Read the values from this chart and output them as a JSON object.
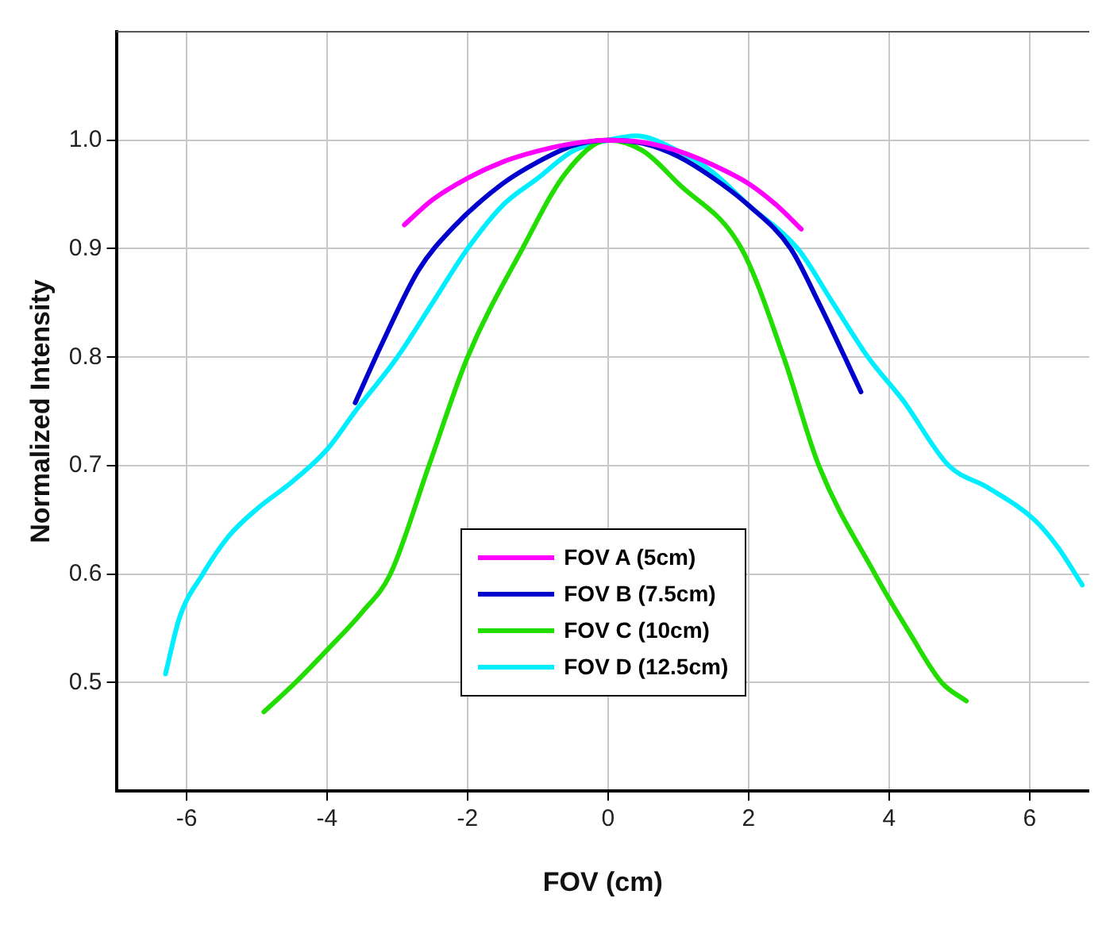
{
  "chart_data": {
    "type": "line",
    "xlabel": "FOV (cm)",
    "ylabel": "Normalized Intensity",
    "xlim": [
      -7,
      6.85
    ],
    "xticks": [
      -6,
      -4,
      -2,
      0,
      2,
      4,
      6
    ],
    "ylim": [
      0.4,
      1.1
    ],
    "yticks": [
      0.5,
      0.6,
      0.7,
      0.8,
      0.9,
      {
        "value": 1,
        "label": "1.0"
      }
    ],
    "grid": true,
    "legend": "bottom",
    "marker": "none",
    "line_style": "solid",
    "series": [
      {
        "name": "FOV A (5cm)",
        "color": "#ff00ff",
        "x": [
          -2.9,
          -2.5,
          -2,
          -1.5,
          -1,
          -0.5,
          0,
          0.5,
          1,
          1.5,
          2,
          2.4,
          2.75
        ],
        "values": [
          0.922,
          0.945,
          0.965,
          0.98,
          0.99,
          0.997,
          1.0,
          0.998,
          0.99,
          0.977,
          0.96,
          0.94,
          0.918
        ]
      },
      {
        "name": "FOV B (7.5cm)",
        "color": "#0000cc",
        "x": [
          -3.6,
          -3.2,
          -2.7,
          -2.2,
          -1.5,
          -1,
          -0.5,
          0,
          0.5,
          1,
          1.5,
          2,
          2.6,
          3,
          3.37,
          3.6
        ],
        "values": [
          0.758,
          0.815,
          0.88,
          0.92,
          0.96,
          0.98,
          0.995,
          1.0,
          0.997,
          0.985,
          0.965,
          0.94,
          0.9,
          0.85,
          0.8,
          0.768
        ]
      },
      {
        "name": "FOV C (10cm)",
        "color": "#22dd00",
        "x": [
          -4.9,
          -4.45,
          -4,
          -3.5,
          -3.1,
          -2.55,
          -2,
          -1.22,
          -0.6,
          0,
          0.5,
          1,
          1.9,
          2.5,
          3.0,
          3.8,
          4.3,
          4.75,
          5.1
        ],
        "values": [
          0.473,
          0.5,
          0.53,
          0.565,
          0.6,
          0.7,
          0.8,
          0.9,
          0.97,
          1.0,
          0.99,
          0.96,
          0.9,
          0.8,
          0.7,
          0.6,
          0.545,
          0.5,
          0.483
        ]
      },
      {
        "name": "FOV D (12.5cm)",
        "color": "#00eeff",
        "x": [
          -6.3,
          -6.1,
          -5.77,
          -5.4,
          -5,
          -4.5,
          -4,
          -3.6,
          -3,
          -2.5,
          -2,
          -1.5,
          -1,
          -0.5,
          0,
          0.4,
          1,
          1.5,
          2,
          2.7,
          3.2,
          3.7,
          4.2,
          4.85,
          5.4,
          6.07,
          6.4,
          6.75
        ],
        "values": [
          0.508,
          0.56,
          0.6,
          0.635,
          0.66,
          0.685,
          0.715,
          0.75,
          0.8,
          0.85,
          0.9,
          0.94,
          0.965,
          0.99,
          1.0,
          1.004,
          0.99,
          0.97,
          0.94,
          0.9,
          0.85,
          0.8,
          0.76,
          0.7,
          0.68,
          0.65,
          0.625,
          0.59
        ]
      }
    ]
  }
}
